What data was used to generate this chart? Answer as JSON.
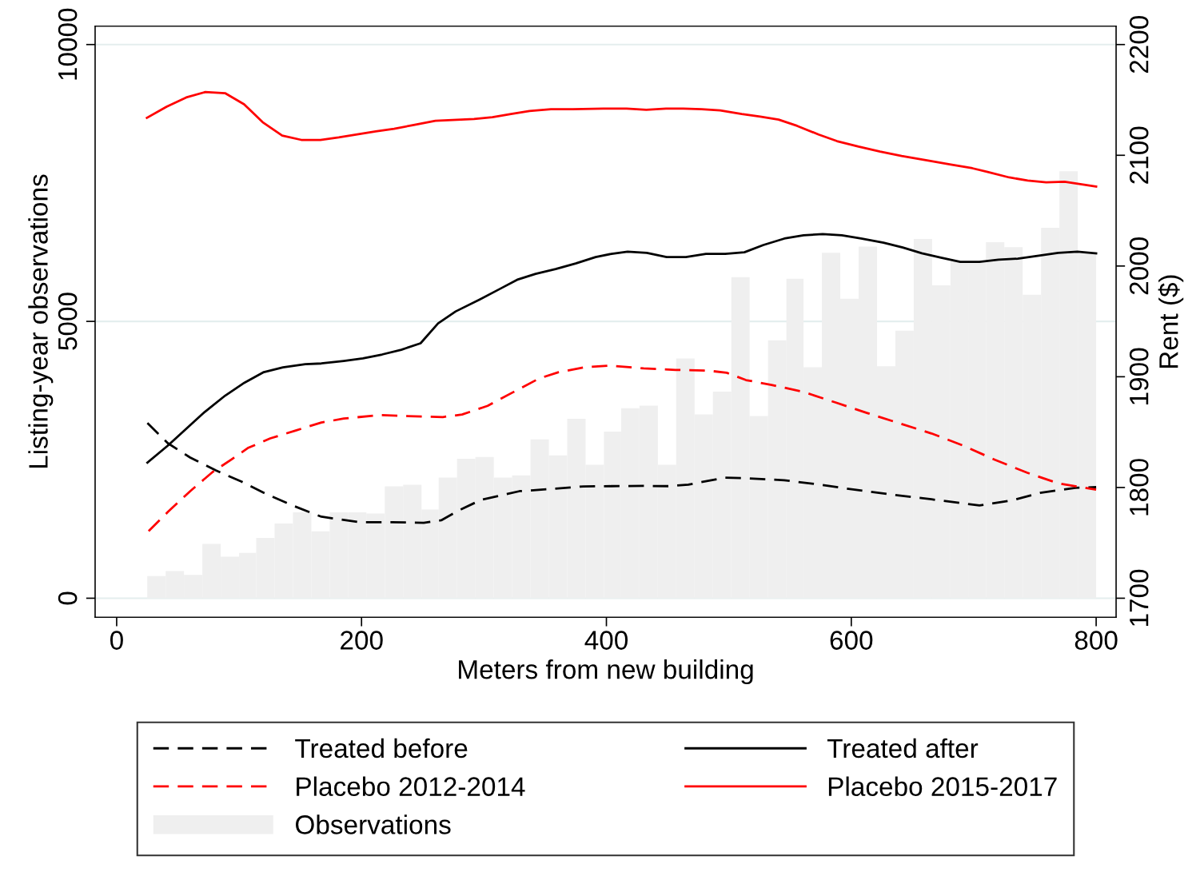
{
  "chart_data": {
    "type": "line",
    "xlabel": "Meters from new building",
    "ylabel": "Listing-year observations",
    "y2label": "Rent ($)",
    "xlim": [
      -17.6,
      816.3
    ],
    "xticks": [
      0,
      200,
      400,
      600,
      800
    ],
    "ylim": [
      -346,
      10332
    ],
    "yticks": [
      0,
      5000,
      10000
    ],
    "y2lim": [
      1682.7,
      2216.6
    ],
    "y2ticks": [
      1700,
      1800,
      1900,
      2000,
      2100,
      2200
    ],
    "grid": "y",
    "legend": "bottom",
    "series": [
      {
        "name": "Treated before",
        "axis": "y2",
        "color": "#000000",
        "line_style": "dashed",
        "x": [
          25.1,
          41.8,
          60.1,
          81.0,
          101.9,
          122.8,
          143.7,
          167.2,
          198.5,
          224.7,
          250.8,
          265.1,
          279.5,
          297.8,
          329.1,
          355.3,
          381.4,
          404.2,
          430.4,
          451.3,
          466.9,
          497.0,
          514.0,
          545.3,
          574.0,
          602.8,
          634.1,
          665.5,
          704.7,
          730.8,
          754.3,
          783.0,
          800
        ],
        "values": [
          1858.2,
          1840.0,
          1827.0,
          1815.4,
          1805.3,
          1793.8,
          1783.7,
          1773.6,
          1768.7,
          1768.7,
          1768.1,
          1770.4,
          1779.4,
          1788.9,
          1796.7,
          1798.7,
          1801.0,
          1801.2,
          1801.4,
          1801.2,
          1802.6,
          1808.9,
          1808.4,
          1806.6,
          1802.6,
          1798.0,
          1793.4,
          1789.3,
          1783.8,
          1788.2,
          1795.1,
          1799.7,
          1800.3
        ]
      },
      {
        "name": "Placebo 2012-2014",
        "axis": "y2",
        "color": "#ff0000",
        "line_style": "dashed",
        "x": [
          26.1,
          41.8,
          60.1,
          78.4,
          94.0,
          107.1,
          125.4,
          146.3,
          167.2,
          185.5,
          214.2,
          237.7,
          266.4,
          282.1,
          303.0,
          323.9,
          344.8,
          360.5,
          381.4,
          402.3,
          430.4,
          456.5,
          482.6,
          498.3,
          514.0,
          534.9,
          561.0,
          587.1,
          613.2,
          639.3,
          665.5,
          691.6,
          717.7,
          743.8,
          769.0,
          800
        ],
        "values": [
          1760.6,
          1777.9,
          1796.7,
          1814.0,
          1825.5,
          1835.6,
          1844.3,
          1851.5,
          1858.7,
          1862.2,
          1865.4,
          1864.5,
          1863.6,
          1865.9,
          1873.7,
          1886.1,
          1898.3,
          1904.0,
          1908.4,
          1910.1,
          1907.6,
          1906.2,
          1905.6,
          1903.6,
          1897.0,
          1892.6,
          1886.3,
          1876.8,
          1867.2,
          1858.0,
          1848.8,
          1837.8,
          1824.8,
          1813.3,
          1803.8,
          1798.0
        ]
      },
      {
        "name": "Observations",
        "type": "histogram",
        "color": "#efefef",
        "bins": [
          25,
          40,
          55,
          70,
          85,
          100,
          114,
          129,
          144,
          159,
          174,
          189,
          204,
          219,
          234,
          249,
          263,
          278,
          293,
          308,
          323,
          338,
          353,
          368,
          383,
          398,
          412,
          427,
          442,
          457,
          472,
          487,
          502,
          517,
          532,
          547,
          561,
          576,
          591,
          606,
          621,
          636,
          651,
          666,
          681,
          696,
          710,
          725,
          740,
          755,
          770,
          785,
          800
        ],
        "values": [
          400,
          490,
          420,
          980,
          750,
          820,
          1090,
          1350,
          1550,
          1210,
          1550,
          1550,
          1530,
          2020,
          2050,
          1600,
          2180,
          2520,
          2550,
          2180,
          2220,
          2870,
          2580,
          3240,
          2410,
          3010,
          3430,
          3480,
          2410,
          4330,
          3320,
          3730,
          5800,
          3290,
          4660,
          5770,
          4170,
          6240,
          5410,
          6350,
          4190,
          4830,
          6490,
          5650,
          6080,
          6080,
          6430,
          6340,
          5480,
          6690,
          7710,
          6230
        ]
      },
      {
        "name": "Treated after",
        "axis": "y2",
        "color": "#000000",
        "line_style": "solid",
        "x": [
          25.1,
          41.8,
          71.8,
          88.8,
          104.5,
          120.2,
          135.8,
          154.1,
          167.2,
          185.5,
          201.1,
          216.8,
          232.5,
          248.2,
          262.5,
          276.9,
          296.5,
          312.8,
          327.8,
          342.2,
          358.5,
          374.9,
          391.2,
          404.2,
          417.3,
          433.0,
          449.2,
          464.9,
          481.3,
          497.0,
          512.7,
          528.3,
          545.3,
          561.0,
          576.7,
          592.3,
          608.0,
          626.3,
          642.0,
          657.6,
          673.3,
          689.0,
          704.7,
          720.3,
          736.0,
          754.3,
          769.0,
          784.7,
          800
        ],
        "values": [
          1822.5,
          1837.8,
          1868.1,
          1883.1,
          1894.7,
          1904.2,
          1908.5,
          1911.4,
          1912.0,
          1914.3,
          1916.6,
          1920.1,
          1924.4,
          1930.2,
          1948.2,
          1959.0,
          1969.8,
          1979.2,
          1987.9,
          1992.9,
          1997.2,
          2002.3,
          2008.1,
          2011.0,
          2013.0,
          2011.8,
          2008.1,
          2008.1,
          2011.0,
          2011.0,
          2012.4,
          2019.0,
          2024.8,
          2027.7,
          2028.9,
          2027.7,
          2024.8,
          2021.1,
          2016.7,
          2011.5,
          2007.5,
          2003.7,
          2003.7,
          2005.8,
          2006.6,
          2009.5,
          2011.8,
          2013.0,
          2011.5
        ]
      },
      {
        "name": "Placebo 2015-2017",
        "axis": "y2",
        "color": "#ff0000",
        "line_style": "solid",
        "x": [
          24.7,
          40.8,
          56.8,
          72.4,
          88.5,
          104.1,
          119.2,
          135.2,
          150.8,
          166.4,
          181.4,
          196.5,
          211.6,
          226.6,
          241.8,
          260.3,
          291.9,
          306.9,
          322.1,
          337.2,
          354.7,
          372.4,
          397.5,
          416.5,
          432.6,
          448.7,
          462.8,
          477.8,
          492.9,
          510.5,
          525.6,
          540.6,
          555.7,
          573.2,
          588.3,
          605.9,
          623.5,
          641.1,
          663.7,
          681.3,
          698.9,
          711.4,
          729.0,
          744.1,
          759.2,
          774.2,
          790.3,
          800
        ],
        "values": [
          2133.8,
          2143.9,
          2152.2,
          2157.1,
          2156.1,
          2146.0,
          2129.9,
          2117.8,
          2113.9,
          2113.9,
          2116.1,
          2118.8,
          2121.6,
          2123.9,
          2127.2,
          2131.1,
          2132.7,
          2134.4,
          2137.2,
          2140.0,
          2141.6,
          2141.6,
          2142.1,
          2142.1,
          2141.0,
          2142.1,
          2142.1,
          2141.6,
          2140.5,
          2137.2,
          2134.9,
          2132.2,
          2126.6,
          2118.8,
          2112.8,
          2107.8,
          2103.3,
          2099.4,
          2095.0,
          2091.6,
          2088.3,
          2085.0,
          2080.0,
          2077.2,
          2075.5,
          2076.1,
          2073.4,
          2071.8
        ]
      }
    ]
  }
}
